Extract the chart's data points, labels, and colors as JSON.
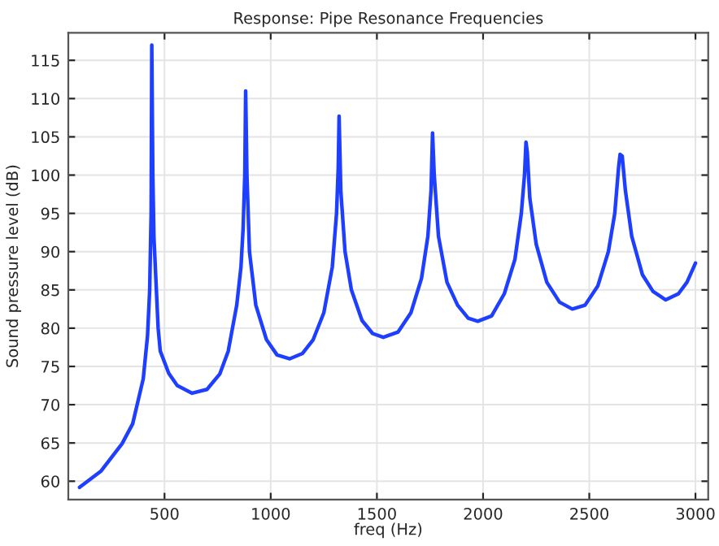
{
  "chart_data": {
    "type": "line",
    "title": "Response: Pipe Resonance Frequencies",
    "xlabel": "freq (Hz)",
    "ylabel": "Sound pressure level (dB)",
    "series": [
      {
        "color": "#1f3fff",
        "x": [
          100,
          200,
          300,
          350,
          400,
          420,
          430,
          437,
          440,
          445,
          450,
          470,
          480,
          520,
          560,
          630,
          700,
          760,
          800,
          840,
          860,
          870,
          878,
          882,
          888,
          900,
          930,
          980,
          1030,
          1090,
          1150,
          1200,
          1250,
          1290,
          1310,
          1318,
          1322,
          1330,
          1350,
          1380,
          1430,
          1480,
          1530,
          1600,
          1660,
          1710,
          1740,
          1755,
          1762,
          1770,
          1790,
          1830,
          1880,
          1930,
          1975,
          2040,
          2100,
          2150,
          2180,
          2195,
          2202,
          2208,
          2220,
          2250,
          2300,
          2360,
          2420,
          2480,
          2540,
          2590,
          2620,
          2638,
          2645,
          2655,
          2670,
          2700,
          2750,
          2800,
          2860,
          2920,
          2960,
          3000
        ],
        "values": [
          59.2,
          61.3,
          64.9,
          67.5,
          73.4,
          79,
          84.9,
          95,
          117,
          100,
          92,
          80,
          77,
          74.1,
          72.5,
          71.5,
          72,
          74,
          77,
          83,
          88,
          93,
          100,
          111,
          100,
          90,
          83,
          78.5,
          76.5,
          76,
          76.7,
          78.5,
          82,
          88,
          95,
          101,
          107.7,
          98,
          90,
          85,
          81,
          79.3,
          78.8,
          79.5,
          82,
          86.5,
          92,
          98,
          105.5,
          100,
          92,
          86,
          83,
          81.3,
          80.9,
          81.6,
          84.5,
          89,
          95,
          100,
          104.3,
          103,
          97,
          91,
          86,
          83.4,
          82.5,
          83,
          85.5,
          90,
          95,
          101,
          102.7,
          102.5,
          98,
          92,
          87,
          84.8,
          83.7,
          84.5,
          86,
          88.5
        ]
      }
    ],
    "xlim": [
      47,
      3060
    ],
    "ylim": [
      57.6,
      118.6
    ],
    "xticks": [
      500,
      1000,
      1500,
      2000,
      2500,
      3000
    ],
    "yticks": [
      60,
      65,
      70,
      75,
      80,
      85,
      90,
      95,
      100,
      105,
      110,
      115
    ],
    "grid": true,
    "marker": "none",
    "line_style": "solid",
    "legend": false
  }
}
